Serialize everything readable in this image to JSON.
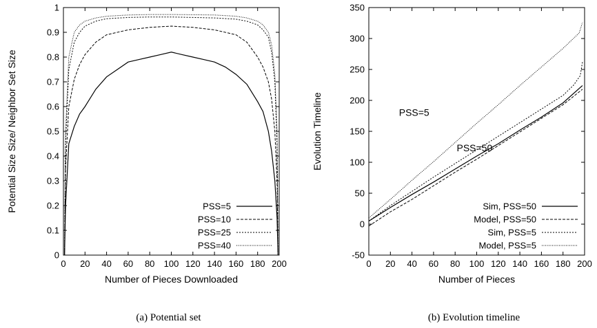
{
  "chart_data": [
    {
      "type": "line",
      "caption": "(a) Potential set",
      "xlabel": "Number of Pieces Downloaded",
      "ylabel": "Potential Size Size/ Neighbor Set Size",
      "xlim": [
        0,
        200
      ],
      "ylim": [
        0,
        1
      ],
      "xticks": [
        0,
        20,
        40,
        60,
        80,
        100,
        120,
        140,
        160,
        180,
        200
      ],
      "yticks": [
        0,
        0.1,
        0.2,
        0.3,
        0.4,
        0.5,
        0.6,
        0.7,
        0.8,
        0.9,
        1
      ],
      "legend_position": "bottom-right",
      "series": [
        {
          "name": "PSS=5",
          "style": "solid",
          "x": [
            1,
            2,
            5,
            10,
            15,
            20,
            30,
            40,
            50,
            60,
            70,
            80,
            90,
            100,
            110,
            120,
            130,
            140,
            150,
            160,
            170,
            180,
            185,
            190,
            193,
            196,
            198,
            199
          ],
          "y": [
            0.0,
            0.2,
            0.45,
            0.52,
            0.57,
            0.6,
            0.67,
            0.72,
            0.75,
            0.78,
            0.79,
            0.8,
            0.81,
            0.82,
            0.81,
            0.8,
            0.79,
            0.78,
            0.76,
            0.73,
            0.69,
            0.62,
            0.58,
            0.5,
            0.42,
            0.3,
            0.15,
            0.0
          ]
        },
        {
          "name": "PSS=10",
          "style": "dashed",
          "x": [
            1,
            2,
            5,
            10,
            15,
            20,
            30,
            40,
            60,
            80,
            100,
            120,
            140,
            160,
            170,
            180,
            185,
            190,
            193,
            196,
            198,
            199
          ],
          "y": [
            0.0,
            0.35,
            0.6,
            0.71,
            0.77,
            0.81,
            0.86,
            0.89,
            0.91,
            0.92,
            0.925,
            0.92,
            0.91,
            0.89,
            0.86,
            0.8,
            0.76,
            0.7,
            0.63,
            0.5,
            0.3,
            0.0
          ]
        },
        {
          "name": "PSS=25",
          "style": "dotted",
          "x": [
            1,
            2,
            5,
            10,
            15,
            20,
            30,
            40,
            60,
            80,
            100,
            120,
            140,
            160,
            170,
            180,
            185,
            190,
            193,
            196,
            198,
            199
          ],
          "y": [
            0.0,
            0.45,
            0.75,
            0.86,
            0.9,
            0.925,
            0.945,
            0.955,
            0.96,
            0.962,
            0.962,
            0.96,
            0.958,
            0.953,
            0.945,
            0.93,
            0.91,
            0.88,
            0.82,
            0.7,
            0.45,
            0.0
          ]
        },
        {
          "name": "PSS=40",
          "style": "fine-dotted",
          "x": [
            1,
            2,
            5,
            10,
            15,
            20,
            30,
            40,
            60,
            80,
            100,
            120,
            140,
            160,
            170,
            180,
            185,
            190,
            193,
            196,
            198,
            199
          ],
          "y": [
            0.0,
            0.5,
            0.8,
            0.9,
            0.93,
            0.945,
            0.958,
            0.965,
            0.97,
            0.972,
            0.972,
            0.971,
            0.97,
            0.965,
            0.958,
            0.945,
            0.93,
            0.9,
            0.85,
            0.73,
            0.5,
            0.0
          ]
        }
      ]
    },
    {
      "type": "line",
      "caption": "(b) Evolution timeline",
      "xlabel": "Number of Pieces",
      "ylabel": "Evolution Timeline",
      "xlim": [
        0,
        200
      ],
      "ylim": [
        -50,
        350
      ],
      "xticks": [
        0,
        20,
        40,
        60,
        80,
        100,
        120,
        140,
        160,
        180,
        200
      ],
      "yticks": [
        -50,
        0,
        50,
        100,
        150,
        200,
        250,
        300,
        350
      ],
      "legend_position": "bottom-right",
      "annotations": [
        {
          "text": "PSS=5",
          "x": 42,
          "y": 175
        },
        {
          "text": "PSS=50",
          "x": 98,
          "y": 118
        }
      ],
      "series": [
        {
          "name": "Sim, PSS=50",
          "style": "solid",
          "x": [
            0,
            20,
            40,
            60,
            80,
            100,
            120,
            140,
            160,
            180,
            198
          ],
          "y": [
            5,
            27,
            48,
            68,
            89,
            110,
            130,
            152,
            173,
            196,
            224
          ]
        },
        {
          "name": "Model, PSS=50",
          "style": "dashed",
          "x": [
            0,
            20,
            40,
            60,
            80,
            100,
            120,
            140,
            160,
            180,
            198
          ],
          "y": [
            -3,
            20,
            40,
            62,
            84,
            105,
            127,
            149,
            171,
            193,
            218
          ]
        },
        {
          "name": "Sim, PSS=5",
          "style": "dotted",
          "x": [
            0,
            20,
            40,
            60,
            80,
            100,
            120,
            140,
            160,
            180,
            190,
            196,
            198
          ],
          "y": [
            5,
            30,
            53,
            76,
            98,
            120,
            142,
            164,
            186,
            208,
            225,
            240,
            262
          ]
        },
        {
          "name": "Model, PSS=5",
          "style": "fine-dotted",
          "x": [
            0,
            20,
            40,
            60,
            80,
            100,
            120,
            140,
            160,
            180,
            195,
            198
          ],
          "y": [
            10,
            40,
            71,
            101,
            132,
            163,
            193,
            224,
            254,
            284,
            309,
            326
          ]
        }
      ]
    }
  ]
}
